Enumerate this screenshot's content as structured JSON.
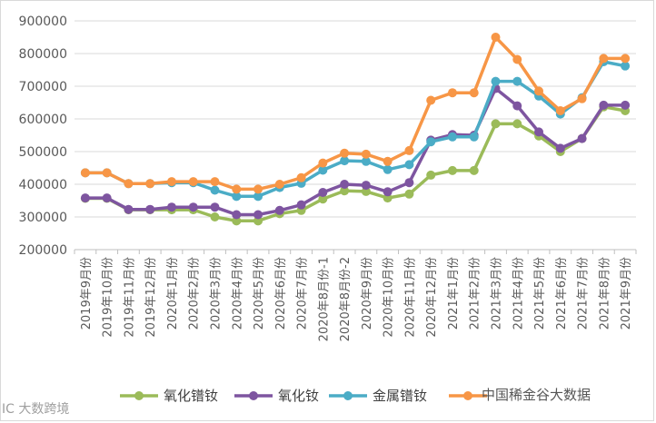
{
  "chart_data": {
    "type": "line",
    "title": "",
    "xlabel": "",
    "ylabel": "",
    "ylim": [
      200000,
      900000
    ],
    "yticks": [
      200000,
      300000,
      400000,
      500000,
      600000,
      700000,
      800000,
      900000
    ],
    "ytick_labels": [
      "200000",
      "300000",
      "400000",
      "500000",
      "600000",
      "700000",
      "800000",
      "900000"
    ],
    "grid": true,
    "legend_position": "bottom",
    "categories": [
      "2019年9月份",
      "2019年10月份",
      "2019年11月份",
      "2019年12月份",
      "2020年1月份",
      "2020年2月份",
      "2020年3月份",
      "2020年4月份",
      "2020年5月份",
      "2020年6月份",
      "2020年7月份",
      "2020年8月份-1",
      "2020年8月份-2",
      "2020年9月份",
      "2020年10月份",
      "2020年11月份",
      "2020年12月份",
      "2021年1月份",
      "2021年2月份",
      "2021年3月份",
      "2021年4月份",
      "2021年5月份",
      "2021年6月份",
      "2021年7月份",
      "2021年8月份",
      "2021年9月份"
    ],
    "series": [
      {
        "name": "氧化镨钕",
        "color": "#9bbb59",
        "values": [
          357000,
          357000,
          322000,
          322000,
          322000,
          322000,
          300000,
          288000,
          288000,
          310000,
          320000,
          355000,
          380000,
          378000,
          358000,
          370000,
          428000,
          442000,
          442000,
          585000,
          585000,
          548000,
          500000,
          540000,
          637000,
          625000
        ]
      },
      {
        "name": "氧化钕",
        "color": "#7e55a0",
        "values": [
          358000,
          358000,
          323000,
          323000,
          330000,
          330000,
          330000,
          307000,
          307000,
          320000,
          337000,
          375000,
          400000,
          397000,
          377000,
          405000,
          535000,
          552000,
          550000,
          693000,
          640000,
          560000,
          510000,
          540000,
          642000,
          642000
        ]
      },
      {
        "name": "金属镨钕",
        "color": "#4bacc6",
        "values": [
          435000,
          435000,
          402000,
          402000,
          405000,
          405000,
          382000,
          363000,
          363000,
          390000,
          403000,
          443000,
          472000,
          470000,
          445000,
          460000,
          530000,
          545000,
          545000,
          715000,
          715000,
          670000,
          615000,
          665000,
          775000,
          762000
        ]
      },
      {
        "name": "",
        "color": "#f79646",
        "values": [
          435000,
          435000,
          402000,
          402000,
          408000,
          408000,
          408000,
          385000,
          385000,
          400000,
          420000,
          465000,
          495000,
          492000,
          470000,
          503000,
          657000,
          680000,
          680000,
          850000,
          782000,
          685000,
          625000,
          662000,
          785000,
          785000
        ]
      }
    ]
  },
  "watermarks": {
    "left": "IC 大数跨境",
    "right": "中国稀金谷大数据"
  }
}
